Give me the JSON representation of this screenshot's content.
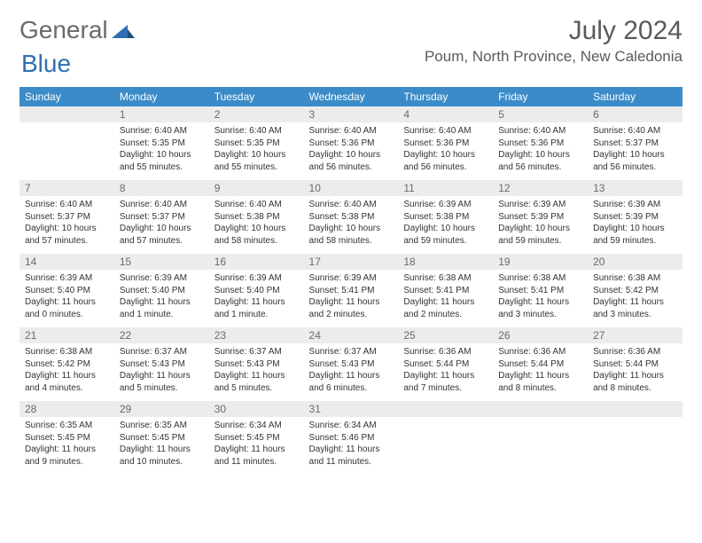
{
  "brand": {
    "part1": "General",
    "part2": "Blue"
  },
  "title": "July 2024",
  "location": "Poum, North Province, New Caledonia",
  "colors": {
    "header_bg": "#3b8bc8",
    "header_text": "#ffffff",
    "daynum_bg": "#ececec",
    "daynum_text": "#6a6a6a",
    "row_divider": "#2f6fb3",
    "body_text": "#333333",
    "logo_gray": "#6a6a6a",
    "logo_blue": "#2f6fb3",
    "background": "#ffffff"
  },
  "dow": [
    "Sunday",
    "Monday",
    "Tuesday",
    "Wednesday",
    "Thursday",
    "Friday",
    "Saturday"
  ],
  "weeks": [
    {
      "nums": [
        "",
        "1",
        "2",
        "3",
        "4",
        "5",
        "6"
      ],
      "cells": [
        "",
        "Sunrise: 6:40 AM\nSunset: 5:35 PM\nDaylight: 10 hours and 55 minutes.",
        "Sunrise: 6:40 AM\nSunset: 5:35 PM\nDaylight: 10 hours and 55 minutes.",
        "Sunrise: 6:40 AM\nSunset: 5:36 PM\nDaylight: 10 hours and 56 minutes.",
        "Sunrise: 6:40 AM\nSunset: 5:36 PM\nDaylight: 10 hours and 56 minutes.",
        "Sunrise: 6:40 AM\nSunset: 5:36 PM\nDaylight: 10 hours and 56 minutes.",
        "Sunrise: 6:40 AM\nSunset: 5:37 PM\nDaylight: 10 hours and 56 minutes."
      ]
    },
    {
      "nums": [
        "7",
        "8",
        "9",
        "10",
        "11",
        "12",
        "13"
      ],
      "cells": [
        "Sunrise: 6:40 AM\nSunset: 5:37 PM\nDaylight: 10 hours and 57 minutes.",
        "Sunrise: 6:40 AM\nSunset: 5:37 PM\nDaylight: 10 hours and 57 minutes.",
        "Sunrise: 6:40 AM\nSunset: 5:38 PM\nDaylight: 10 hours and 58 minutes.",
        "Sunrise: 6:40 AM\nSunset: 5:38 PM\nDaylight: 10 hours and 58 minutes.",
        "Sunrise: 6:39 AM\nSunset: 5:38 PM\nDaylight: 10 hours and 59 minutes.",
        "Sunrise: 6:39 AM\nSunset: 5:39 PM\nDaylight: 10 hours and 59 minutes.",
        "Sunrise: 6:39 AM\nSunset: 5:39 PM\nDaylight: 10 hours and 59 minutes."
      ]
    },
    {
      "nums": [
        "14",
        "15",
        "16",
        "17",
        "18",
        "19",
        "20"
      ],
      "cells": [
        "Sunrise: 6:39 AM\nSunset: 5:40 PM\nDaylight: 11 hours and 0 minutes.",
        "Sunrise: 6:39 AM\nSunset: 5:40 PM\nDaylight: 11 hours and 1 minute.",
        "Sunrise: 6:39 AM\nSunset: 5:40 PM\nDaylight: 11 hours and 1 minute.",
        "Sunrise: 6:39 AM\nSunset: 5:41 PM\nDaylight: 11 hours and 2 minutes.",
        "Sunrise: 6:38 AM\nSunset: 5:41 PM\nDaylight: 11 hours and 2 minutes.",
        "Sunrise: 6:38 AM\nSunset: 5:41 PM\nDaylight: 11 hours and 3 minutes.",
        "Sunrise: 6:38 AM\nSunset: 5:42 PM\nDaylight: 11 hours and 3 minutes."
      ]
    },
    {
      "nums": [
        "21",
        "22",
        "23",
        "24",
        "25",
        "26",
        "27"
      ],
      "cells": [
        "Sunrise: 6:38 AM\nSunset: 5:42 PM\nDaylight: 11 hours and 4 minutes.",
        "Sunrise: 6:37 AM\nSunset: 5:43 PM\nDaylight: 11 hours and 5 minutes.",
        "Sunrise: 6:37 AM\nSunset: 5:43 PM\nDaylight: 11 hours and 5 minutes.",
        "Sunrise: 6:37 AM\nSunset: 5:43 PM\nDaylight: 11 hours and 6 minutes.",
        "Sunrise: 6:36 AM\nSunset: 5:44 PM\nDaylight: 11 hours and 7 minutes.",
        "Sunrise: 6:36 AM\nSunset: 5:44 PM\nDaylight: 11 hours and 8 minutes.",
        "Sunrise: 6:36 AM\nSunset: 5:44 PM\nDaylight: 11 hours and 8 minutes."
      ]
    },
    {
      "nums": [
        "28",
        "29",
        "30",
        "31",
        "",
        "",
        ""
      ],
      "cells": [
        "Sunrise: 6:35 AM\nSunset: 5:45 PM\nDaylight: 11 hours and 9 minutes.",
        "Sunrise: 6:35 AM\nSunset: 5:45 PM\nDaylight: 11 hours and 10 minutes.",
        "Sunrise: 6:34 AM\nSunset: 5:45 PM\nDaylight: 11 hours and 11 minutes.",
        "Sunrise: 6:34 AM\nSunset: 5:46 PM\nDaylight: 11 hours and 11 minutes.",
        "",
        "",
        ""
      ]
    }
  ]
}
